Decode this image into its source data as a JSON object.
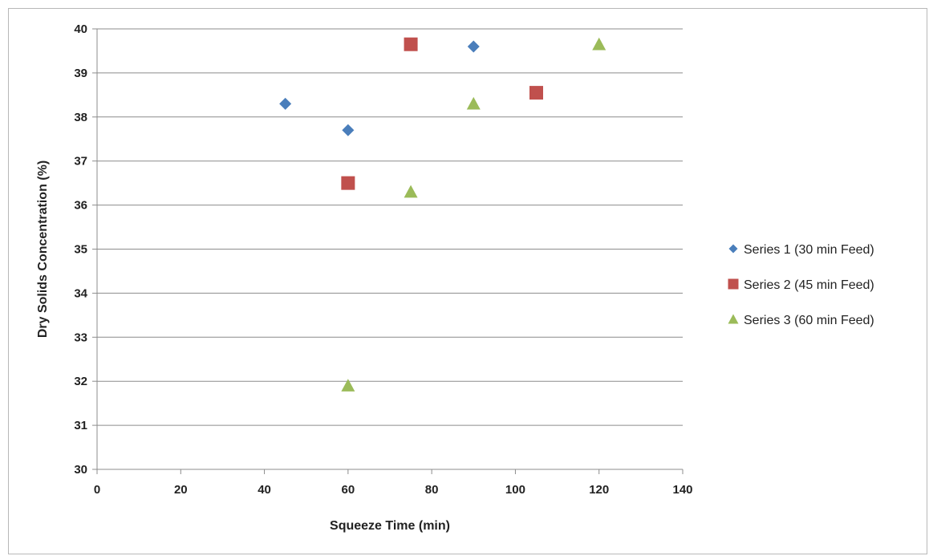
{
  "chart_data": {
    "type": "scatter",
    "title": "",
    "xlabel": "Squeeze Time (min)",
    "ylabel": "Dry Solids Concentration (%)",
    "xlim": [
      0,
      140
    ],
    "ylim": [
      30,
      40
    ],
    "xticks": [
      0,
      20,
      40,
      60,
      80,
      100,
      120,
      140
    ],
    "yticks": [
      30,
      31,
      32,
      33,
      34,
      35,
      36,
      37,
      38,
      39,
      40
    ],
    "grid": "horizontal",
    "legend_position": "right",
    "series": [
      {
        "name": "Series 1 (30 min Feed)",
        "marker": "diamond",
        "color": "#4a7ebb",
        "points": [
          [
            45,
            38.3
          ],
          [
            60,
            37.7
          ],
          [
            90,
            39.6
          ]
        ]
      },
      {
        "name": "Series 2 (45 min Feed)",
        "marker": "square",
        "color": "#c0504d",
        "points": [
          [
            60,
            36.5
          ],
          [
            75,
            39.65
          ],
          [
            105,
            38.55
          ]
        ]
      },
      {
        "name": "Series 3 (60 min Feed)",
        "marker": "triangle",
        "color": "#9bbb59",
        "points": [
          [
            60,
            31.9
          ],
          [
            75,
            36.3
          ],
          [
            90,
            38.3
          ],
          [
            120,
            39.65
          ]
        ]
      }
    ]
  }
}
